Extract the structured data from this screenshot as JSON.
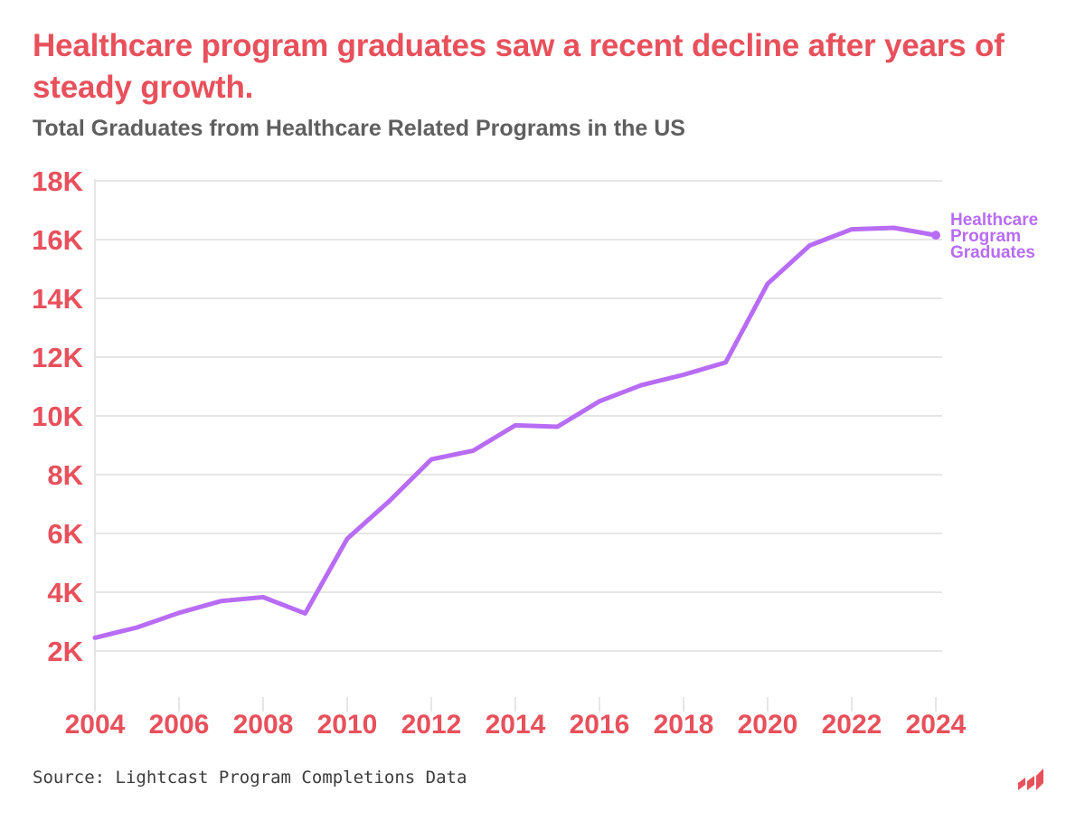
{
  "title": "Healthcare program graduates saw a recent decline after years of steady growth.",
  "subtitle": "Total Graduates from Healthcare Related Programs in the US",
  "source": "Source: Lightcast Program Completions Data",
  "colors": {
    "accent": "#e8505b",
    "series": "#b86cf5",
    "grid": "#e6e6e6",
    "subtitle": "#5f5f5f",
    "source": "#3c3c3c"
  },
  "chart_data": {
    "type": "line",
    "title": "Healthcare program graduates saw a recent decline after years of steady growth.",
    "subtitle": "Total Graduates from Healthcare Related Programs in the US",
    "xlabel": "",
    "ylabel": "",
    "x": [
      2004,
      2005,
      2006,
      2007,
      2008,
      2009,
      2010,
      2011,
      2012,
      2013,
      2014,
      2015,
      2016,
      2017,
      2018,
      2019,
      2020,
      2021,
      2022,
      2023,
      2024
    ],
    "series": [
      {
        "name": "Healthcare Program Graduates",
        "label_lines": [
          "Healthcare",
          "Program",
          "Graduates"
        ],
        "values": [
          2450,
          2800,
          3300,
          3700,
          3830,
          3280,
          5820,
          7100,
          8520,
          8820,
          9680,
          9630,
          10500,
          11050,
          11400,
          11820,
          14500,
          15800,
          16350,
          16400,
          16150
        ]
      }
    ],
    "xlim": [
      2004,
      2024
    ],
    "ylim": [
      0,
      18000
    ],
    "y_ticks": [
      2000,
      4000,
      6000,
      8000,
      10000,
      12000,
      14000,
      16000,
      18000
    ],
    "y_tick_labels": [
      "2K",
      "4K",
      "6K",
      "8K",
      "10K",
      "12K",
      "14K",
      "16K",
      "18K"
    ],
    "x_ticks": [
      2004,
      2006,
      2008,
      2010,
      2012,
      2014,
      2016,
      2018,
      2020,
      2022,
      2024
    ],
    "x_tick_labels": [
      "2004",
      "2006",
      "2008",
      "2010",
      "2012",
      "2014",
      "2016",
      "2018",
      "2020",
      "2022",
      "2024"
    ],
    "grid": true,
    "legend": "direct label at end of line (right)"
  }
}
